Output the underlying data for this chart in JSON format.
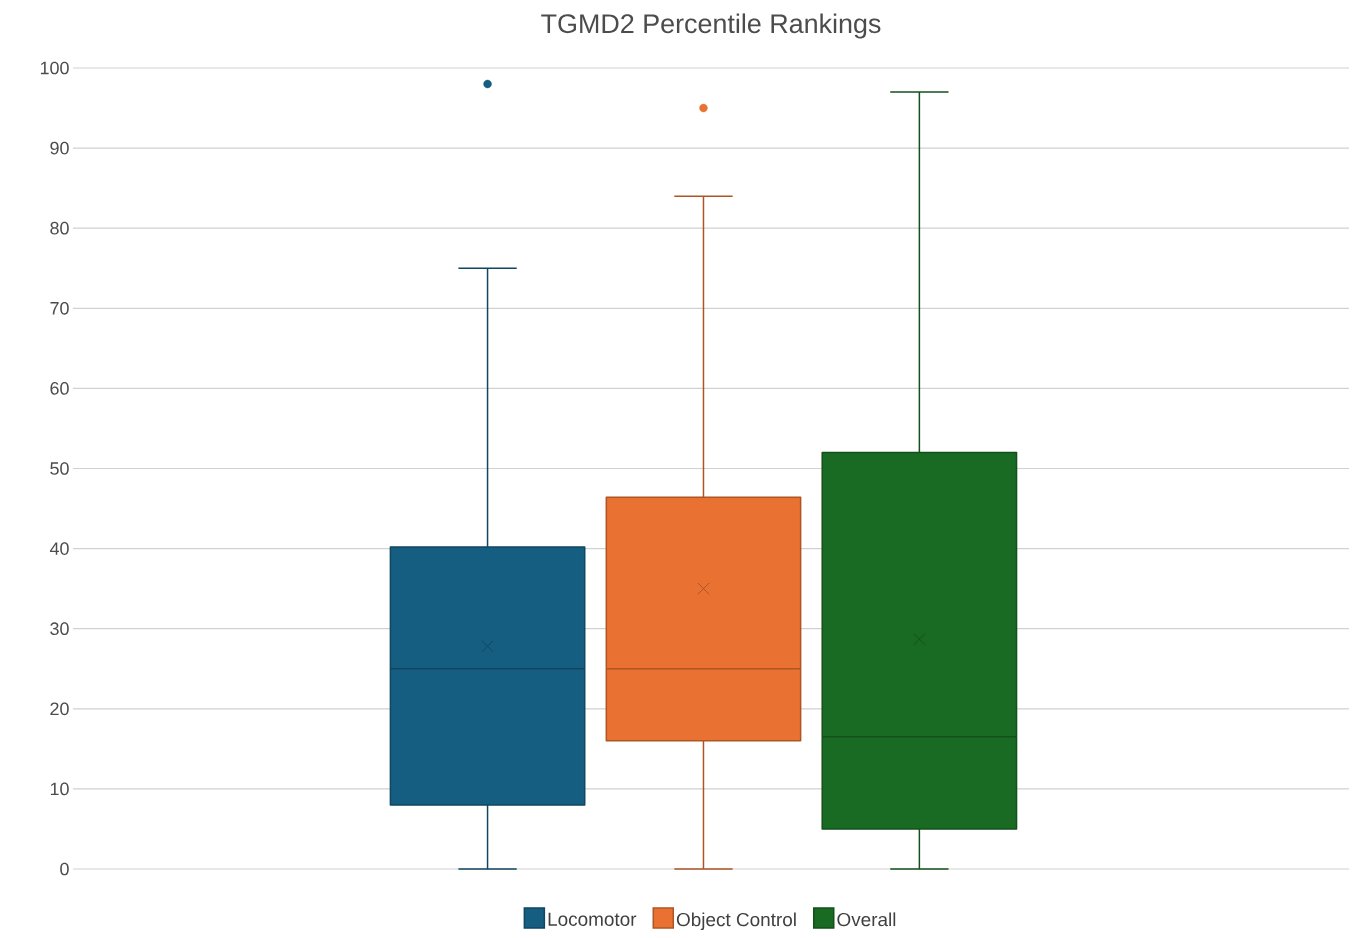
{
  "chart_data": {
    "type": "box",
    "title": "TGMD2 Percentile Rankings",
    "categories": [
      null
    ],
    "series": [
      {
        "name": "Locomotor",
        "color": "#155e82",
        "boxes": [
          {
            "low": 0,
            "q1": 8,
            "median": 25,
            "q3": 40.2,
            "high": 75,
            "mean": 27.8,
            "outliers": [
              98
            ]
          }
        ]
      },
      {
        "name": "Object Control",
        "color": "#e97132",
        "boxes": [
          {
            "low": 0,
            "q1": 16,
            "median": 25,
            "q3": 46.4,
            "high": 84,
            "mean": 35,
            "outliers": [
              95
            ]
          }
        ]
      },
      {
        "name": "Overall",
        "color": "#196b24",
        "boxes": [
          {
            "low": 0,
            "q1": 5,
            "median": 16.5,
            "q3": 52,
            "high": 97,
            "mean": 28.7
          }
        ]
      }
    ],
    "ylim": [
      0,
      100
    ],
    "yticks": [
      0,
      10,
      20,
      30,
      40,
      50,
      60,
      70,
      80,
      90,
      100
    ],
    "grid": "y",
    "legend": "bottom"
  }
}
